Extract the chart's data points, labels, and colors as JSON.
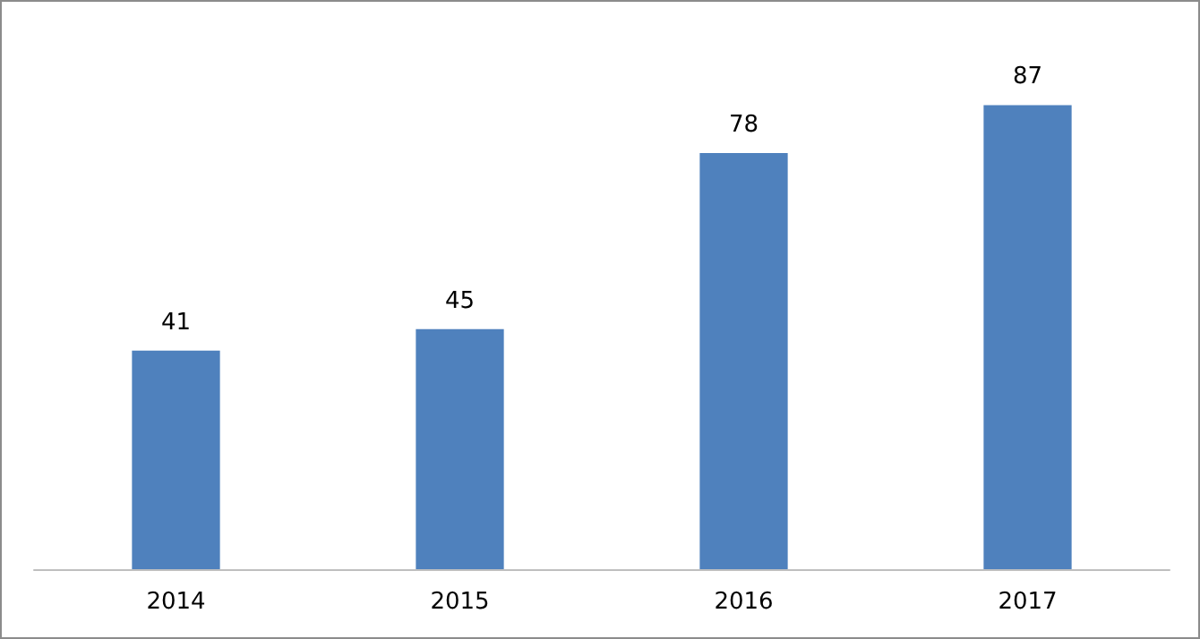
{
  "chart_data": {
    "type": "bar",
    "categories": [
      "2014",
      "2015",
      "2016",
      "2017"
    ],
    "values": [
      41,
      45,
      78,
      87
    ],
    "color": "#4f81bd",
    "data_labels": true
  }
}
